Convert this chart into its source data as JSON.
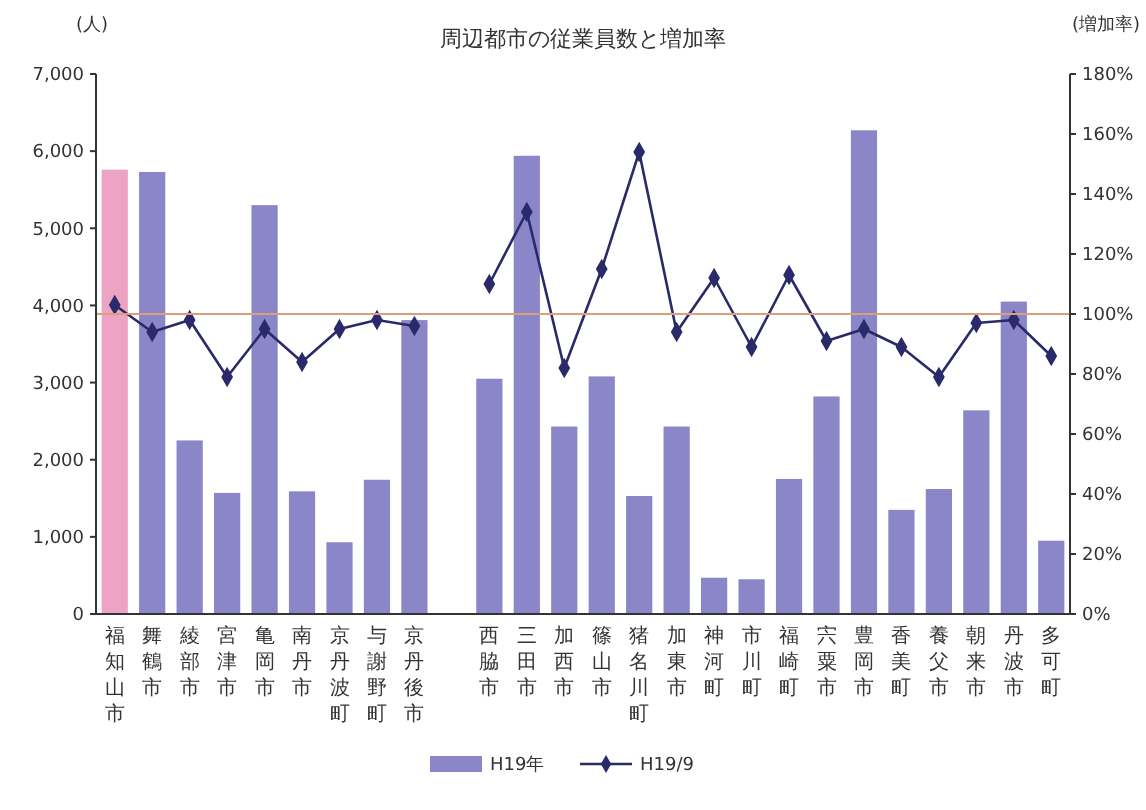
{
  "chart_data": {
    "type": "bar",
    "title": "周辺都市の従業員数と増加率",
    "ylabel": "(人)",
    "y2label": "(増加率)",
    "categories": [
      "福知山市",
      "舞鶴市",
      "綾部市",
      "宮津市",
      "亀岡市",
      "南丹市",
      "京丹波町",
      "与謝野町",
      "京丹後市",
      null,
      "西脇市",
      "三田市",
      "加西市",
      "篠山市",
      "猪名川町",
      "加東市",
      "神河町",
      "市川町",
      "福崎町",
      "宍粟市",
      "豊岡市",
      "香美町",
      "養父市",
      "朝来市",
      "丹波市",
      "多可町"
    ],
    "series": [
      {
        "name": "H19年",
        "color": "#8a86c8",
        "colors": [
          "#eca3c4",
          "#8a86c8",
          "#8a86c8",
          "#8a86c8",
          "#8a86c8",
          "#8a86c8",
          "#8a86c8",
          "#8a86c8",
          "#8a86c8",
          null,
          "#8a86c8",
          "#8a86c8",
          "#8a86c8",
          "#8a86c8",
          "#8a86c8",
          "#8a86c8",
          "#8a86c8",
          "#8a86c8",
          "#8a86c8",
          "#8a86c8",
          "#8a86c8",
          "#8a86c8",
          "#8a86c8",
          "#8a86c8",
          "#8a86c8",
          "#8a86c8"
        ],
        "values": [
          5760,
          5730,
          2250,
          1570,
          5300,
          1590,
          930,
          1740,
          3810,
          null,
          3050,
          5940,
          2430,
          3080,
          1530,
          2430,
          470,
          450,
          1750,
          2820,
          6270,
          1350,
          1620,
          2640,
          4050,
          950
        ]
      },
      {
        "name": "H19/9",
        "type": "line",
        "axis": "y2",
        "color": "#2a2a6a",
        "marker": "diamond",
        "values": [
          103,
          94,
          98,
          79,
          95,
          84,
          95,
          98,
          96,
          null,
          110,
          134,
          82,
          115,
          154,
          94,
          112,
          89,
          113,
          91,
          95,
          89,
          79,
          97,
          98,
          86
        ]
      }
    ],
    "ylim": [
      0,
      7000
    ],
    "yticks": [
      {
        "value": 0,
        "label": "0"
      },
      {
        "value": 1000,
        "label": "1,000"
      },
      {
        "value": 2000,
        "label": "2,000"
      },
      {
        "value": 3000,
        "label": "3,000"
      },
      {
        "value": 4000,
        "label": "4,000"
      },
      {
        "value": 5000,
        "label": "5,000"
      },
      {
        "value": 6000,
        "label": "6,000"
      },
      {
        "value": 7000,
        "label": "7,000"
      }
    ],
    "y2lim": [
      0,
      180
    ],
    "y2ticks": [
      {
        "value": 0,
        "label": "0%"
      },
      {
        "value": 20,
        "label": "20%"
      },
      {
        "value": 40,
        "label": "40%"
      },
      {
        "value": 60,
        "label": "60%"
      },
      {
        "value": 80,
        "label": "80%"
      },
      {
        "value": 100,
        "label": "100%"
      },
      {
        "value": 120,
        "label": "120%"
      },
      {
        "value": 140,
        "label": "140%"
      },
      {
        "value": 160,
        "label": "160%"
      },
      {
        "value": 180,
        "label": "180%"
      }
    ],
    "ref_lines": [
      {
        "axis": "y2",
        "value": 100,
        "color": "#d9a07a"
      }
    ],
    "legend": "bottom",
    "grid": false
  }
}
